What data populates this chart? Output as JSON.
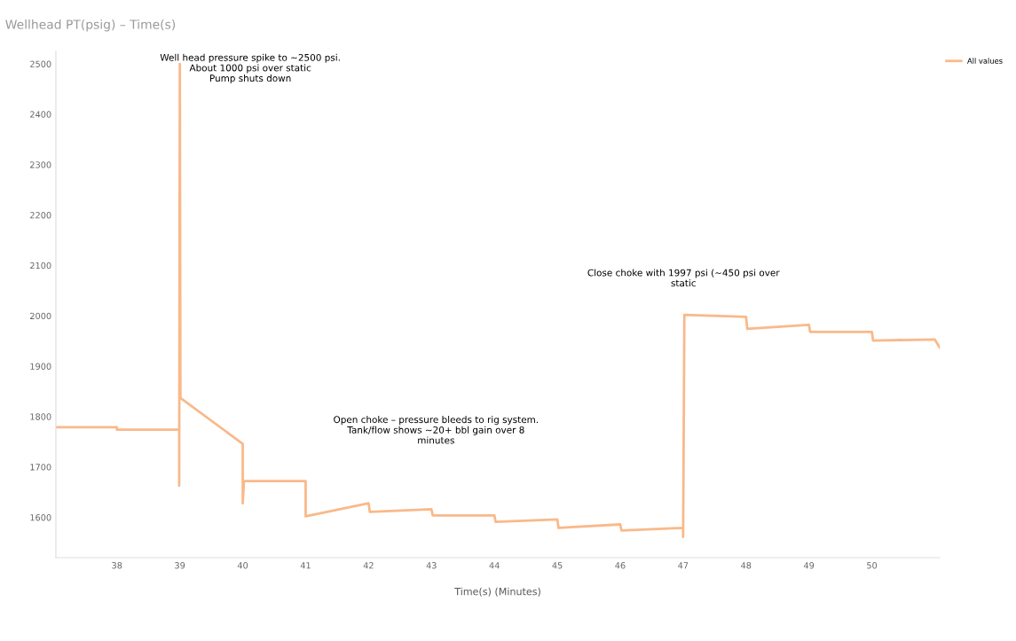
{
  "chart_data": {
    "type": "line",
    "title": "Wellhead PT(psig) – Time(s)",
    "xlabel": "Time(s) (Minutes)",
    "x": [
      37.03,
      38,
      38,
      38.99,
      38.99,
      39,
      39.01,
      40,
      40,
      40.02,
      41,
      41,
      42,
      42.02,
      43,
      43.02,
      44,
      44.02,
      45,
      45.02,
      46,
      46.02,
      47,
      47,
      47.02,
      48,
      48.02,
      49,
      49.02,
      50,
      50.02,
      51,
      51.08
    ],
    "series": [
      {
        "name": "All values",
        "color": "#f9b98a",
        "values": [
          1779,
          1779,
          1774,
          1774,
          1663,
          2500,
          1837,
          1746,
          1628,
          1672,
          1672,
          1602,
          1628,
          1611,
          1616,
          1604,
          1604,
          1591,
          1596,
          1579,
          1586,
          1574,
          1579,
          1561,
          2002,
          1998,
          1974,
          1982,
          1968,
          1968,
          1951,
          1953,
          1937
        ]
      }
    ],
    "xlim": [
      37.03,
      51.08
    ],
    "xticks": [
      38,
      39,
      40,
      41,
      42,
      43,
      44,
      45,
      46,
      47,
      48,
      49,
      50
    ],
    "ylim": [
      1520,
      2525
    ],
    "yticks": [
      1600,
      1700,
      1800,
      1900,
      2000,
      2100,
      2200,
      2300,
      2400,
      2500
    ],
    "annotations": [
      "Well head pressure spike to ~2500 psi.\nAbout 1000 psi over static\nPump shuts down",
      "Open choke – pressure bleeds to rig system.\nTank/flow shows ~20+ bbl gain over 8\nminutes",
      "Close choke with 1997 psi (~450 psi over\nstatic"
    ],
    "grid": false,
    "legend": "top right",
    "marker": "none",
    "line_style": "solid"
  }
}
